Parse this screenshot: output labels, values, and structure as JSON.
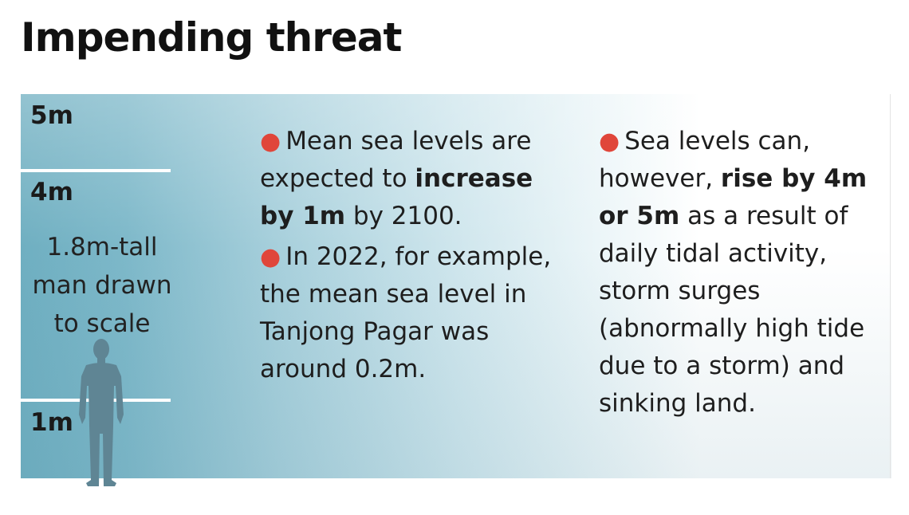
{
  "title": "Impending threat",
  "levels": {
    "five": "5m",
    "four": "4m",
    "one": "1m"
  },
  "man_label": {
    "line1": "1.8m-tall",
    "line2": "man drawn",
    "line3": "to scale"
  },
  "middle": {
    "b1_pre": "Mean sea levels are expected to ",
    "b1_bold": "increase by 1m",
    "b1_post": " by 2100.",
    "b2_text": "In 2022, for example, the mean sea level in Tanjong Pagar was around 0.2m."
  },
  "right": {
    "b1_pre": "Sea levels can, however, ",
    "b1_bold": "rise by 4m or 5m",
    "b1_post": " as a result of daily tidal activity, storm surges (abnormally high tide due to a storm) and sinking land."
  },
  "colors": {
    "bullet": "#e0463a",
    "water": "#7db8c9",
    "silhouette": "#5f8594"
  },
  "icons": {
    "man": "human-silhouette-icon"
  }
}
